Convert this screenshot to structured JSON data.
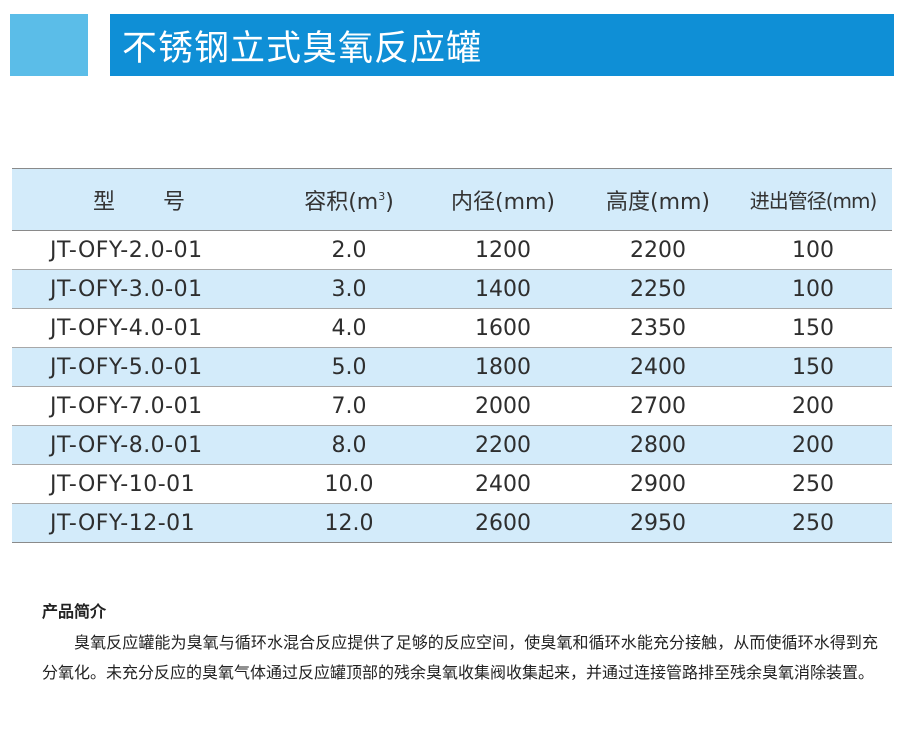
{
  "header": {
    "title": "不锈钢立式臭氧反应罐",
    "accent_color": "#5bbde8",
    "bar_color": "#0f8fd6"
  },
  "table": {
    "headers": {
      "model": "型号",
      "volume": "容积(m",
      "volume_sup": "3",
      "volume_close": ")",
      "inner_diameter": "内径(mm)",
      "height": "高度(mm)",
      "pipe_diameter": "进出管径(mm)"
    },
    "rows": [
      {
        "model": "JT-OFY-2.0-01",
        "volume": "2.0",
        "inner_diameter": "1200",
        "height": "2200",
        "pipe_diameter": "100"
      },
      {
        "model": "JT-OFY-3.0-01",
        "volume": "3.0",
        "inner_diameter": "1400",
        "height": "2250",
        "pipe_diameter": "100"
      },
      {
        "model": "JT-OFY-4.0-01",
        "volume": "4.0",
        "inner_diameter": "1600",
        "height": "2350",
        "pipe_diameter": "150"
      },
      {
        "model": "JT-OFY-5.0-01",
        "volume": "5.0",
        "inner_diameter": "1800",
        "height": "2400",
        "pipe_diameter": "150"
      },
      {
        "model": "JT-OFY-7.0-01",
        "volume": "7.0",
        "inner_diameter": "2000",
        "height": "2700",
        "pipe_diameter": "200"
      },
      {
        "model": "JT-OFY-8.0-01",
        "volume": "8.0",
        "inner_diameter": "2200",
        "height": "2800",
        "pipe_diameter": "200"
      },
      {
        "model": "JT-OFY-10-01",
        "volume": "10.0",
        "inner_diameter": "2400",
        "height": "2900",
        "pipe_diameter": "250"
      },
      {
        "model": "JT-OFY-12-01",
        "volume": "12.0",
        "inner_diameter": "2600",
        "height": "2950",
        "pipe_diameter": "250"
      }
    ],
    "stripe_color": "#d3ebfa"
  },
  "intro": {
    "heading": "产品简介",
    "body": "臭氧反应罐能为臭氧与循环水混合反应提供了足够的反应空间，使臭氧和循环水能充分接触，从而使循环水得到充分氧化。未充分反应的臭氧气体通过反应罐顶部的残余臭氧收集阀收集起来，并通过连接管路排至残余臭氧消除装置。"
  }
}
